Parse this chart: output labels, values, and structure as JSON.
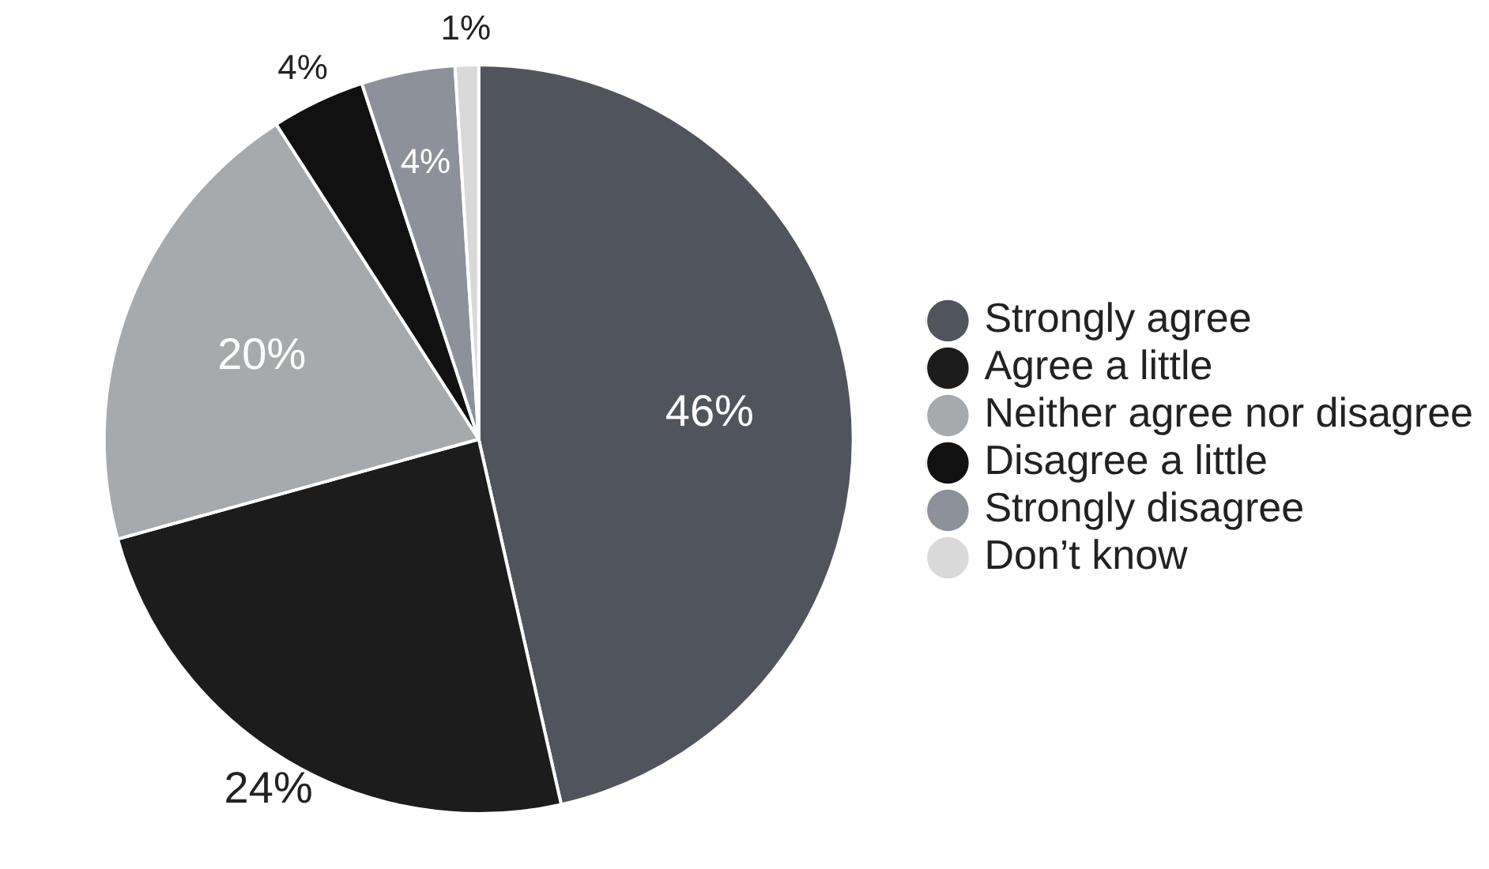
{
  "chart_data": {
    "type": "pie",
    "categories": [
      "Strongly agree",
      "Agree a little",
      "Neither agree nor disagree",
      "Disagree a little",
      "Strongly disagree",
      "Don’t know"
    ],
    "values": [
      46,
      24,
      20,
      4,
      4,
      1
    ],
    "colors": [
      "#50555d",
      "#1c1c1c",
      "#a7aaac",
      "#111111",
      "#8d919b",
      "#d9d9d9"
    ],
    "value_labels": [
      "46%",
      "24%",
      "20%",
      "4%",
      "4%",
      "1%"
    ],
    "legend": "right"
  }
}
